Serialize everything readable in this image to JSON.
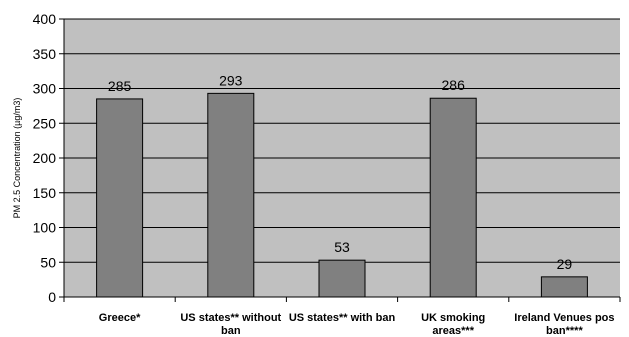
{
  "chart_data": {
    "type": "bar",
    "categories": [
      [
        "Greece*"
      ],
      [
        "US states** without",
        "ban"
      ],
      [
        "US states** with ban"
      ],
      [
        "UK smoking",
        "areas***"
      ],
      [
        "Ireland Venues pos",
        "ban****"
      ]
    ],
    "values": [
      285,
      293,
      53,
      286,
      29
    ],
    "data_labels": [
      "285",
      "293",
      "53",
      "286",
      "29"
    ],
    "title": "",
    "xlabel": "",
    "ylabel": "PM 2.5 Concentration (µg/m3)",
    "ylim": [
      0,
      400
    ],
    "yticks": [
      0,
      50,
      100,
      150,
      200,
      250,
      300,
      350,
      400
    ],
    "grid": true,
    "legend": "none",
    "colors": {
      "plot_background": "#c0c0c0",
      "bar_fill": "#808080",
      "bar_stroke": "#000000",
      "grid": "#000000"
    }
  }
}
